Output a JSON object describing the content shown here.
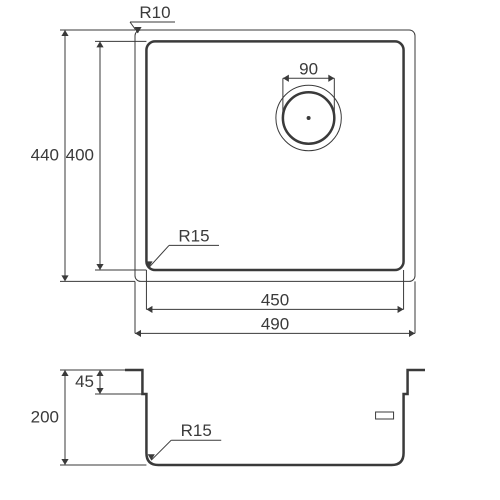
{
  "colors": {
    "line": "#3a3a3a",
    "bg": "#ffffff",
    "text": "#3a3a3a"
  },
  "font": {
    "size": 17,
    "family": "Arial"
  },
  "line_widths": {
    "thin": 1,
    "thick": 2.5
  },
  "top_view": {
    "outer_w": 490,
    "outer_h": 440,
    "outer_r": 10,
    "inner_w": 450,
    "inner_h": 400,
    "inner_r": 15,
    "drain_d": 90
  },
  "side_view": {
    "depth": 200,
    "rim_drop": 45,
    "inner_r": 15
  },
  "labels": {
    "r10": "R10",
    "r15_top": "R15",
    "r15_side": "R15",
    "d90": "90",
    "h440": "440",
    "h400": "400",
    "w450": "450",
    "w490": "490",
    "depth200": "200",
    "drop45": "45"
  }
}
